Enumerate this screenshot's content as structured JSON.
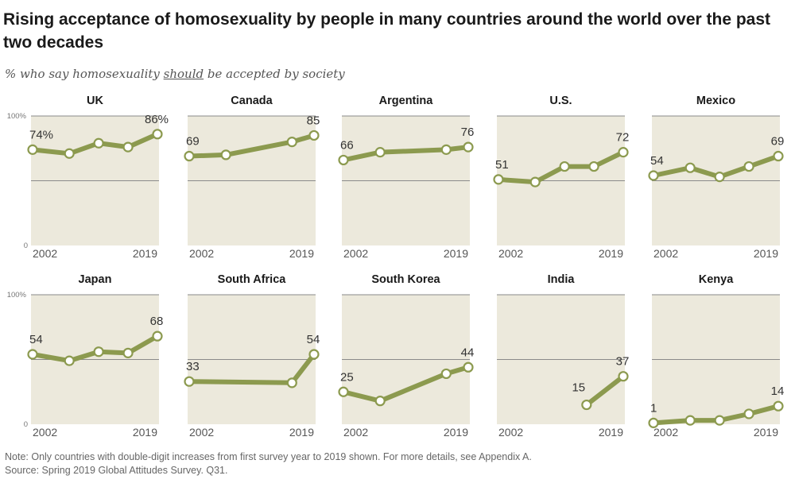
{
  "title": "Rising acceptance of homosexuality by people in many countries around the world over the past two decades",
  "subtitle_pre": "% who say homosexuality ",
  "subtitle_em": "should",
  "subtitle_post": " be accepted by society",
  "notes": {
    "note": "Note: Only countries with double-digit increases from first survey year to 2019 shown. For more details, see Appendix A.",
    "source": "Source: Spring 2019 Global Attitudes Survey. Q31."
  },
  "colors": {
    "line": "#8c9a4f",
    "panel": "#ece9dc",
    "grid": "#8a8a8a"
  },
  "chart_data": {
    "type": "line",
    "x_start": 2002,
    "x_end": 2019,
    "ylim": [
      0,
      100
    ],
    "y_tick_labels": [
      "100%",
      "0"
    ],
    "x_tick_labels": [
      "2002",
      "2019"
    ],
    "panels": [
      {
        "country": "UK",
        "x": [
          2002,
          2007,
          2011,
          2015,
          2019
        ],
        "y": [
          74,
          71,
          79,
          76,
          86
        ],
        "first_label": "74%",
        "last_label": "86%"
      },
      {
        "country": "Canada",
        "x": [
          2002,
          2007,
          2016,
          2019
        ],
        "y": [
          69,
          70,
          80,
          85
        ],
        "first_label": "69",
        "last_label": "85"
      },
      {
        "country": "Argentina",
        "x": [
          2002,
          2007,
          2016,
          2019
        ],
        "y": [
          66,
          72,
          74,
          76
        ],
        "first_label": "66",
        "last_label": "76"
      },
      {
        "country": "U.S.",
        "x": [
          2002,
          2007,
          2011,
          2015,
          2019
        ],
        "y": [
          51,
          49,
          61,
          61,
          72
        ],
        "first_label": "51",
        "last_label": "72"
      },
      {
        "country": "Mexico",
        "x": [
          2002,
          2007,
          2011,
          2015,
          2019
        ],
        "y": [
          54,
          60,
          53,
          61,
          69
        ],
        "first_label": "54",
        "last_label": "69"
      },
      {
        "country": "Japan",
        "x": [
          2002,
          2007,
          2011,
          2015,
          2019
        ],
        "y": [
          54,
          49,
          56,
          55,
          68
        ],
        "first_label": "54",
        "last_label": "68"
      },
      {
        "country": "South Africa",
        "x": [
          2002,
          2016,
          2019
        ],
        "y": [
          33,
          32,
          54
        ],
        "first_label": "33",
        "last_label": "54"
      },
      {
        "country": "South Korea",
        "x": [
          2002,
          2007,
          2016,
          2019
        ],
        "y": [
          25,
          18,
          39,
          44
        ],
        "first_label": "25",
        "last_label": "44"
      },
      {
        "country": "India",
        "x": [
          2014,
          2019
        ],
        "y": [
          15,
          37
        ],
        "first_label": "15",
        "last_label": "37"
      },
      {
        "country": "Kenya",
        "x": [
          2002,
          2007,
          2011,
          2015,
          2019
        ],
        "y": [
          1,
          3,
          3,
          8,
          14
        ],
        "first_label": "1",
        "last_label": "14"
      }
    ]
  }
}
